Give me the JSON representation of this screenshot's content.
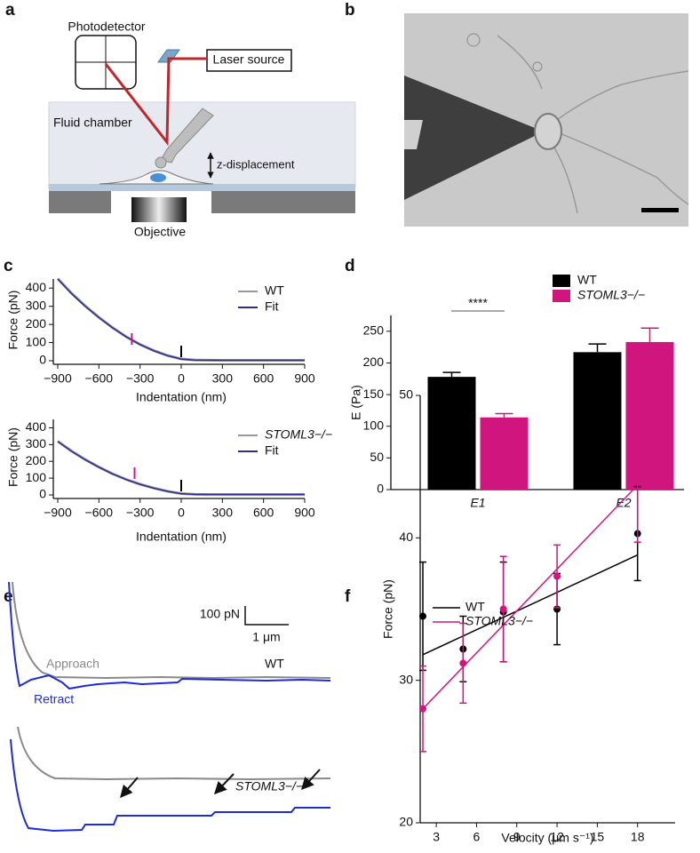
{
  "panel_labels": [
    "a",
    "b",
    "c",
    "d",
    "e",
    "f"
  ],
  "schematic": {
    "photodetector": "Photodetector",
    "laser": "Laser source",
    "chamber": "Fluid chamber",
    "displacement": "z-displacement",
    "objective": "Objective"
  },
  "traces": {
    "scale_force": "100 pN",
    "scale_distance": "1 μm",
    "approach": "Approach",
    "retract": "Retract",
    "wt": "WT",
    "ko": "STOML3−/−"
  },
  "chart_data": [
    {
      "type": "line",
      "x": [
        -900,
        -800,
        -700,
        -600,
        -500,
        -400,
        -300,
        -200,
        -100,
        0,
        100,
        200,
        300,
        400,
        500,
        600,
        700,
        800,
        900
      ],
      "series": [
        {
          "name": "WT",
          "color": "#999999",
          "values": [
            452,
            372,
            302,
            239,
            182,
            132,
            90,
            56,
            29,
            10,
            4,
            3,
            2,
            2,
            2,
            2,
            2,
            2,
            2
          ]
        },
        {
          "name": "Fit",
          "color": "#2e2e8f",
          "values": [
            450,
            370,
            300,
            238,
            181,
            131,
            89,
            55,
            28,
            9,
            3,
            3,
            3,
            3,
            3,
            3,
            3,
            3,
            3
          ]
        }
      ],
      "xlim": [
        -900,
        900
      ],
      "xticks": [
        {
          "value": -900,
          "label": "−900"
        },
        {
          "value": -600,
          "label": "−600"
        },
        {
          "value": -300,
          "label": "−300"
        },
        0,
        300,
        600,
        900
      ],
      "ylim": [
        0,
        450
      ],
      "yticks": [
        0,
        100,
        200,
        300,
        400
      ],
      "xlabel": "Indentation (nm)",
      "ylabel": "Force (pN)",
      "contact_marks": [
        {
          "x": -360,
          "color": "#d0157f"
        },
        {
          "x": 0,
          "color": "#000000"
        }
      ]
    },
    {
      "type": "line",
      "x": [
        -900,
        -800,
        -700,
        -600,
        -500,
        -400,
        -300,
        -200,
        -100,
        0,
        100,
        200,
        300,
        400,
        500,
        600,
        700,
        800,
        900
      ],
      "series": [
        {
          "name": "STOML3−/−",
          "color": "#999999",
          "values": [
            320,
            262,
            211,
            166,
            126,
            92,
            64,
            41,
            22,
            8,
            3,
            2,
            2,
            2,
            2,
            2,
            2,
            2,
            2
          ]
        },
        {
          "name": "Fit",
          "color": "#2e2e8f",
          "values": [
            318,
            260,
            210,
            165,
            125,
            91,
            63,
            40,
            21,
            7,
            3,
            3,
            3,
            3,
            3,
            3,
            3,
            3,
            3
          ]
        }
      ],
      "xlim": [
        -900,
        900
      ],
      "xticks": [
        {
          "value": -900,
          "label": "−900"
        },
        {
          "value": -600,
          "label": "−600"
        },
        {
          "value": -300,
          "label": "−300"
        },
        0,
        300,
        600,
        900
      ],
      "ylim": [
        0,
        450
      ],
      "yticks": [
        0,
        100,
        200,
        300,
        400
      ],
      "xlabel": "Indentation (nm)",
      "ylabel": "Force (pN)",
      "contact_marks": [
        {
          "x": -340,
          "color": "#d0157f"
        },
        {
          "x": 0,
          "color": "#000000"
        }
      ]
    },
    {
      "type": "bar",
      "categories": [
        "E1",
        "E2"
      ],
      "series": [
        {
          "name": "WT",
          "color": "#000000",
          "values": [
            178,
            217
          ],
          "errors": [
            7,
            13
          ]
        },
        {
          "name": "STOML3−/−",
          "color": "#d0157f",
          "values": [
            114,
            233
          ],
          "errors": [
            6,
            22
          ]
        }
      ],
      "ylim": [
        0,
        275
      ],
      "yticks": [
        0,
        50,
        100,
        150,
        200,
        250
      ],
      "ylabel": "E (Pa)",
      "annotation": "****"
    },
    {
      "type": "scatter",
      "x": [
        2,
        5,
        8,
        12,
        18
      ],
      "series": [
        {
          "name": "WT",
          "color": "#000000",
          "values": [
            34.5,
            32.2,
            34.8,
            35.0,
            40.3
          ],
          "errors": [
            3.8,
            2.3,
            3.5,
            2.5,
            3.3
          ],
          "fit_x": [
            2,
            18
          ],
          "fit_values": [
            31.8,
            38.8
          ]
        },
        {
          "name": "STOML3−/−",
          "color": "#d0157f",
          "values": [
            28.0,
            31.2,
            35.0,
            37.3,
            44.4
          ],
          "errors": [
            3.0,
            2.8,
            3.7,
            2.2,
            4.7
          ],
          "fit_x": [
            2,
            18
          ],
          "fit_values": [
            28.0,
            43.7
          ]
        }
      ],
      "xlim": [
        1.8,
        20.8
      ],
      "xticks": [
        3,
        6,
        9,
        12,
        15,
        18
      ],
      "ylim": [
        20,
        50
      ],
      "yticks": [
        20,
        30,
        40,
        50
      ],
      "xlabel": "Velocity (μm s⁻¹)",
      "ylabel": "Force (pN)"
    }
  ]
}
